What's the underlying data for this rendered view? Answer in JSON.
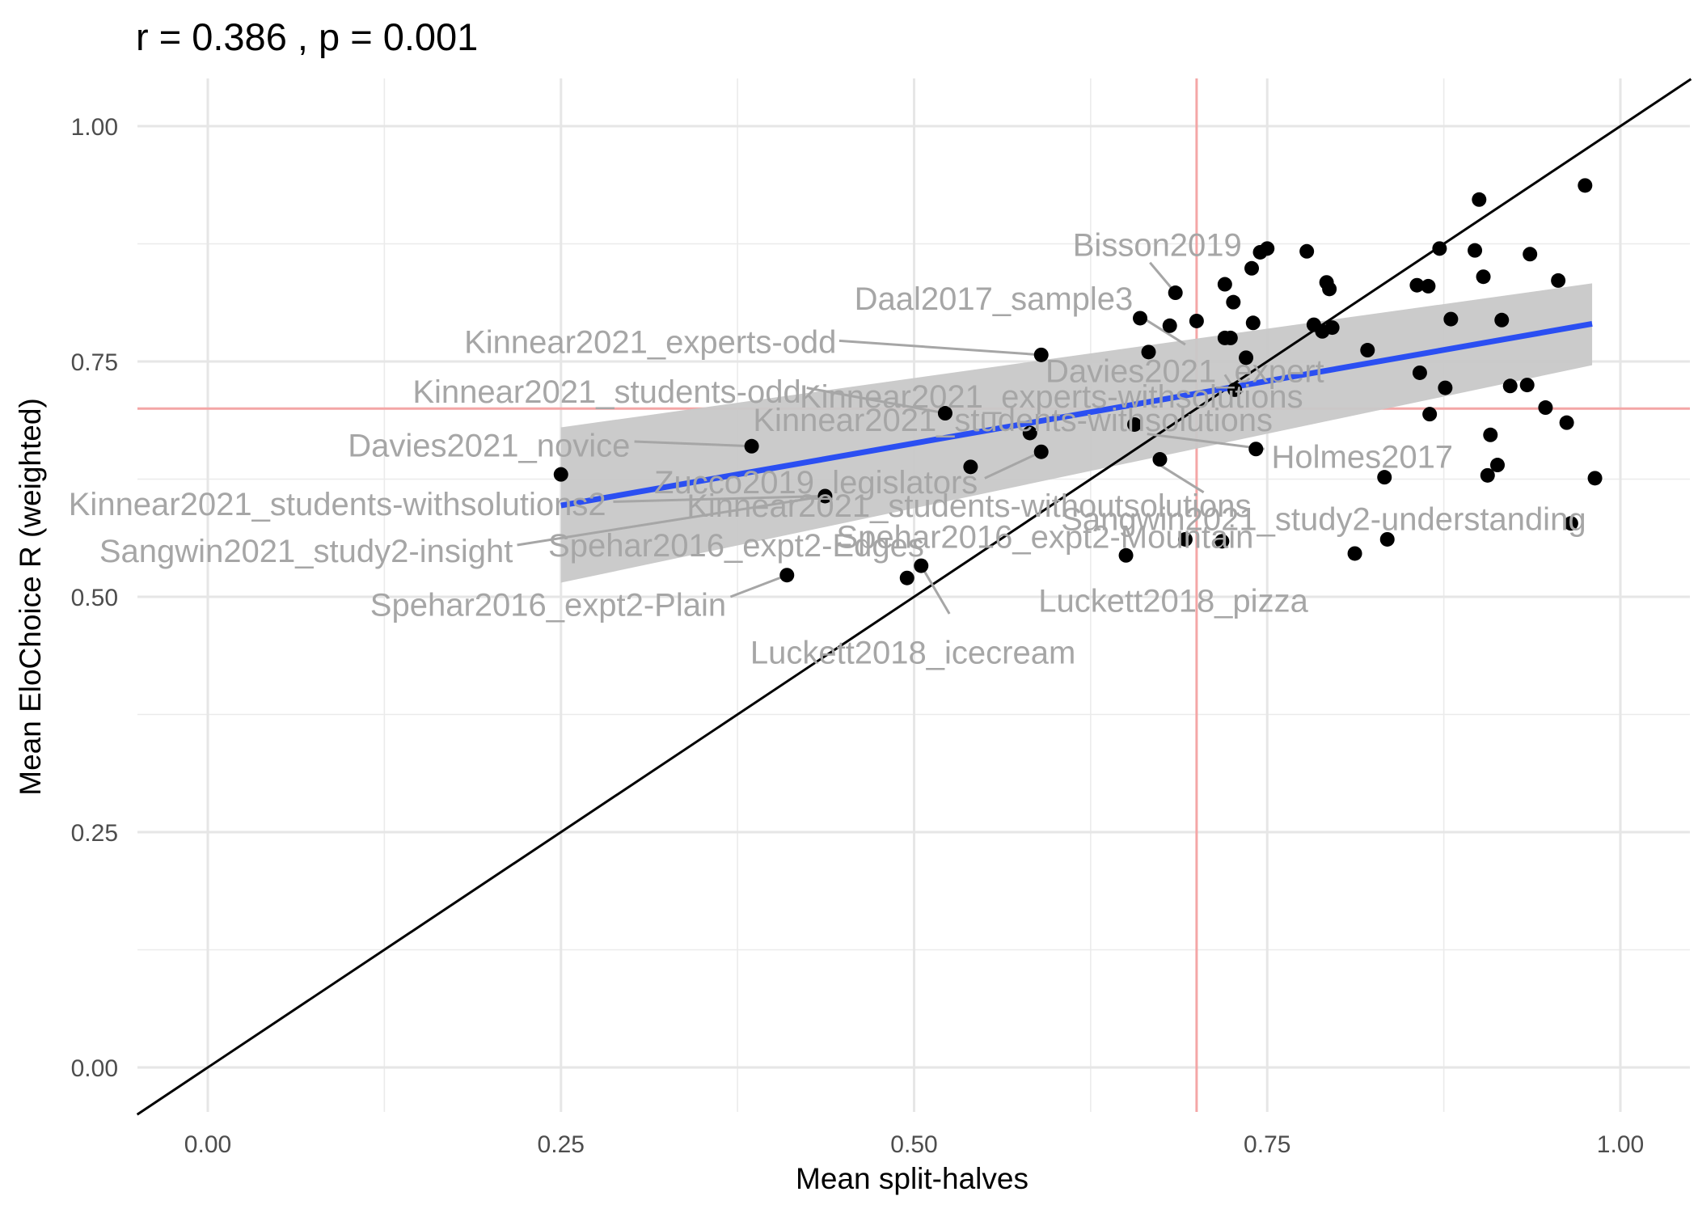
{
  "chart_data": {
    "type": "scatter",
    "title": "r =  0.386 , p =  0.001",
    "xlabel": "Mean split-halves",
    "ylabel": "Mean EloChoice R (weighted)",
    "xlim": [
      -0.05,
      1.05
    ],
    "ylim": [
      -0.05,
      1.05
    ],
    "x_ticks": [
      "0.00",
      "0.25",
      "0.50",
      "0.75",
      "1.00"
    ],
    "y_ticks": [
      "0.00",
      "0.25",
      "0.50",
      "0.75",
      "1.00"
    ],
    "grid": true,
    "reference_lines": {
      "x": 0.7,
      "y": 0.7,
      "color": "#f4a6a6"
    },
    "identity_line": {
      "slope": 1,
      "intercept": 0,
      "color": "#000000"
    },
    "regression": {
      "x_range": [
        0.25,
        0.98
      ],
      "y_at_start": 0.597,
      "y_at_end": 0.79,
      "color": "#2b4ff2",
      "band_low": [
        0.515,
        0.746
      ],
      "band_high": [
        0.68,
        0.833
      ],
      "band_color": "#c8c8c8"
    },
    "point_color": "#000000",
    "label_color": "#a6a6a6",
    "points": [
      [
        0.25,
        0.63
      ],
      [
        0.385,
        0.66
      ],
      [
        0.41,
        0.523
      ],
      [
        0.437,
        0.607
      ],
      [
        0.495,
        0.52
      ],
      [
        0.505,
        0.533
      ],
      [
        0.522,
        0.695
      ],
      [
        0.54,
        0.638
      ],
      [
        0.582,
        0.674
      ],
      [
        0.59,
        0.757
      ],
      [
        0.59,
        0.654
      ],
      [
        0.65,
        0.544
      ],
      [
        0.656,
        0.683
      ],
      [
        0.66,
        0.796
      ],
      [
        0.666,
        0.76
      ],
      [
        0.674,
        0.646
      ],
      [
        0.681,
        0.788
      ],
      [
        0.685,
        0.823
      ],
      [
        0.692,
        0.561
      ],
      [
        0.7,
        0.793
      ],
      [
        0.718,
        0.559
      ],
      [
        0.72,
        0.832
      ],
      [
        0.72,
        0.775
      ],
      [
        0.724,
        0.775
      ],
      [
        0.726,
        0.813
      ],
      [
        0.727,
        0.72
      ],
      [
        0.735,
        0.754
      ],
      [
        0.739,
        0.849
      ],
      [
        0.74,
        0.791
      ],
      [
        0.742,
        0.657
      ],
      [
        0.745,
        0.866
      ],
      [
        0.75,
        0.87
      ],
      [
        0.778,
        0.867
      ],
      [
        0.783,
        0.789
      ],
      [
        0.789,
        0.782
      ],
      [
        0.792,
        0.834
      ],
      [
        0.794,
        0.827
      ],
      [
        0.796,
        0.786
      ],
      [
        0.812,
        0.546
      ],
      [
        0.821,
        0.762
      ],
      [
        0.833,
        0.627
      ],
      [
        0.835,
        0.561
      ],
      [
        0.856,
        0.831
      ],
      [
        0.858,
        0.738
      ],
      [
        0.864,
        0.83
      ],
      [
        0.865,
        0.694
      ],
      [
        0.872,
        0.87
      ],
      [
        0.876,
        0.722
      ],
      [
        0.88,
        0.795
      ],
      [
        0.897,
        0.868
      ],
      [
        0.9,
        0.922
      ],
      [
        0.903,
        0.84
      ],
      [
        0.906,
        0.629
      ],
      [
        0.908,
        0.672
      ],
      [
        0.913,
        0.64
      ],
      [
        0.916,
        0.794
      ],
      [
        0.922,
        0.724
      ],
      [
        0.934,
        0.725
      ],
      [
        0.936,
        0.864
      ],
      [
        0.947,
        0.701
      ],
      [
        0.956,
        0.836
      ],
      [
        0.962,
        0.685
      ],
      [
        0.965,
        0.578
      ],
      [
        0.975,
        0.937
      ],
      [
        0.982,
        0.626
      ]
    ],
    "annotations": [
      {
        "text": "Bisson2019",
        "point": [
          0.685,
          0.823
        ],
        "anchor": "end",
        "label_x": 0.732,
        "label_y": 0.874,
        "bend": [
          0.667,
          0.855
        ]
      },
      {
        "text": "Daal2017_sample3",
        "point": [
          0.692,
          0.768
        ],
        "anchor": "end",
        "label_x": 0.655,
        "label_y": 0.817,
        "bend": [
          0.658,
          0.8
        ]
      },
      {
        "text": "Kinnear2021_experts-odd",
        "point": [
          0.59,
          0.757
        ],
        "anchor": "end",
        "label_x": 0.445,
        "label_y": 0.771,
        "bend": [
          0.447,
          0.772
        ]
      },
      {
        "text": "Davies2021_expert",
        "point": [
          0.727,
          0.72
        ],
        "anchor": "start",
        "label_x": 0.593,
        "label_y": 0.74,
        "bend": [
          0.72,
          0.736
        ]
      },
      {
        "text": "Kinnear2021_experts-withsolutions",
        "point": [
          0.7,
          0.712
        ],
        "anchor": "start",
        "label_x": 0.419,
        "label_y": 0.713,
        "bend": [
          0.7,
          0.712
        ]
      },
      {
        "text": "Kinnear2021_students-odd",
        "point": [
          0.522,
          0.695
        ],
        "anchor": "end",
        "label_x": 0.42,
        "label_y": 0.718,
        "bend": [
          0.424,
          0.722
        ]
      },
      {
        "text": "Kinnear2021_students-withsolutions",
        "point": [
          0.7,
          0.695
        ],
        "anchor": "start",
        "label_x": 0.386,
        "label_y": 0.688,
        "bend": [
          0.7,
          0.695
        ]
      },
      {
        "text": "Holmes2017",
        "point": [
          0.665,
          0.673
        ],
        "anchor": "start",
        "label_x": 0.753,
        "label_y": 0.649,
        "bend": [
          0.748,
          0.657
        ]
      },
      {
        "text": "Davies2021_novice",
        "point": [
          0.385,
          0.66
        ],
        "anchor": "end",
        "label_x": 0.299,
        "label_y": 0.661,
        "bend": [
          0.302,
          0.665
        ]
      },
      {
        "text": "Zucco2019_legislators",
        "point": [
          0.59,
          0.654
        ],
        "anchor": "start",
        "label_x": 0.316,
        "label_y": 0.622,
        "bend": [
          0.55,
          0.626
        ]
      },
      {
        "text": "Kinnear2021_students-withoutsolutions",
        "point": [
          0.674,
          0.64
        ],
        "anchor": "start",
        "label_x": 0.339,
        "label_y": 0.597,
        "bend": [
          0.705,
          0.611
        ]
      },
      {
        "text": "Sangwin2021_study2-understanding",
        "point": [
          0.705,
          0.604
        ],
        "anchor": "start",
        "label_x": 0.604,
        "label_y": 0.583,
        "bend": [
          0.705,
          0.604
        ]
      },
      {
        "text": "Kinnear2021_students-withsolutions2",
        "point": [
          0.437,
          0.607
        ],
        "anchor": "end",
        "label_x": 0.282,
        "label_y": 0.599,
        "bend": [
          0.287,
          0.601
        ]
      },
      {
        "text": "Spehar2016_expt2-Mountain",
        "point": [
          0.68,
          0.58
        ],
        "anchor": "start",
        "label_x": 0.445,
        "label_y": 0.564,
        "bend": [
          0.68,
          0.58
        ]
      },
      {
        "text": "Spehar2016_expt2-Edges",
        "point": [
          0.54,
          0.58
        ],
        "anchor": "start",
        "label_x": 0.241,
        "label_y": 0.555,
        "bend": [
          0.54,
          0.58
        ]
      },
      {
        "text": "Sangwin2021_study2-insight",
        "point": [
          0.437,
          0.607
        ],
        "anchor": "end",
        "label_x": 0.216,
        "label_y": 0.549,
        "bend": [
          0.219,
          0.555
        ]
      },
      {
        "text": "Luckett2018_pizza",
        "point": [
          0.65,
          0.544
        ],
        "anchor": "start",
        "label_x": 0.588,
        "label_y": 0.496,
        "bend": [
          0.65,
          0.544
        ]
      },
      {
        "text": "Spehar2016_expt2-Plain",
        "point": [
          0.41,
          0.523
        ],
        "anchor": "end",
        "label_x": 0.367,
        "label_y": 0.492,
        "bend": [
          0.37,
          0.5
        ]
      },
      {
        "text": "Luckett2018_icecream",
        "point": [
          0.505,
          0.533
        ],
        "anchor": "start",
        "label_x": 0.384,
        "label_y": 0.441,
        "bend": [
          0.525,
          0.482
        ]
      }
    ]
  }
}
